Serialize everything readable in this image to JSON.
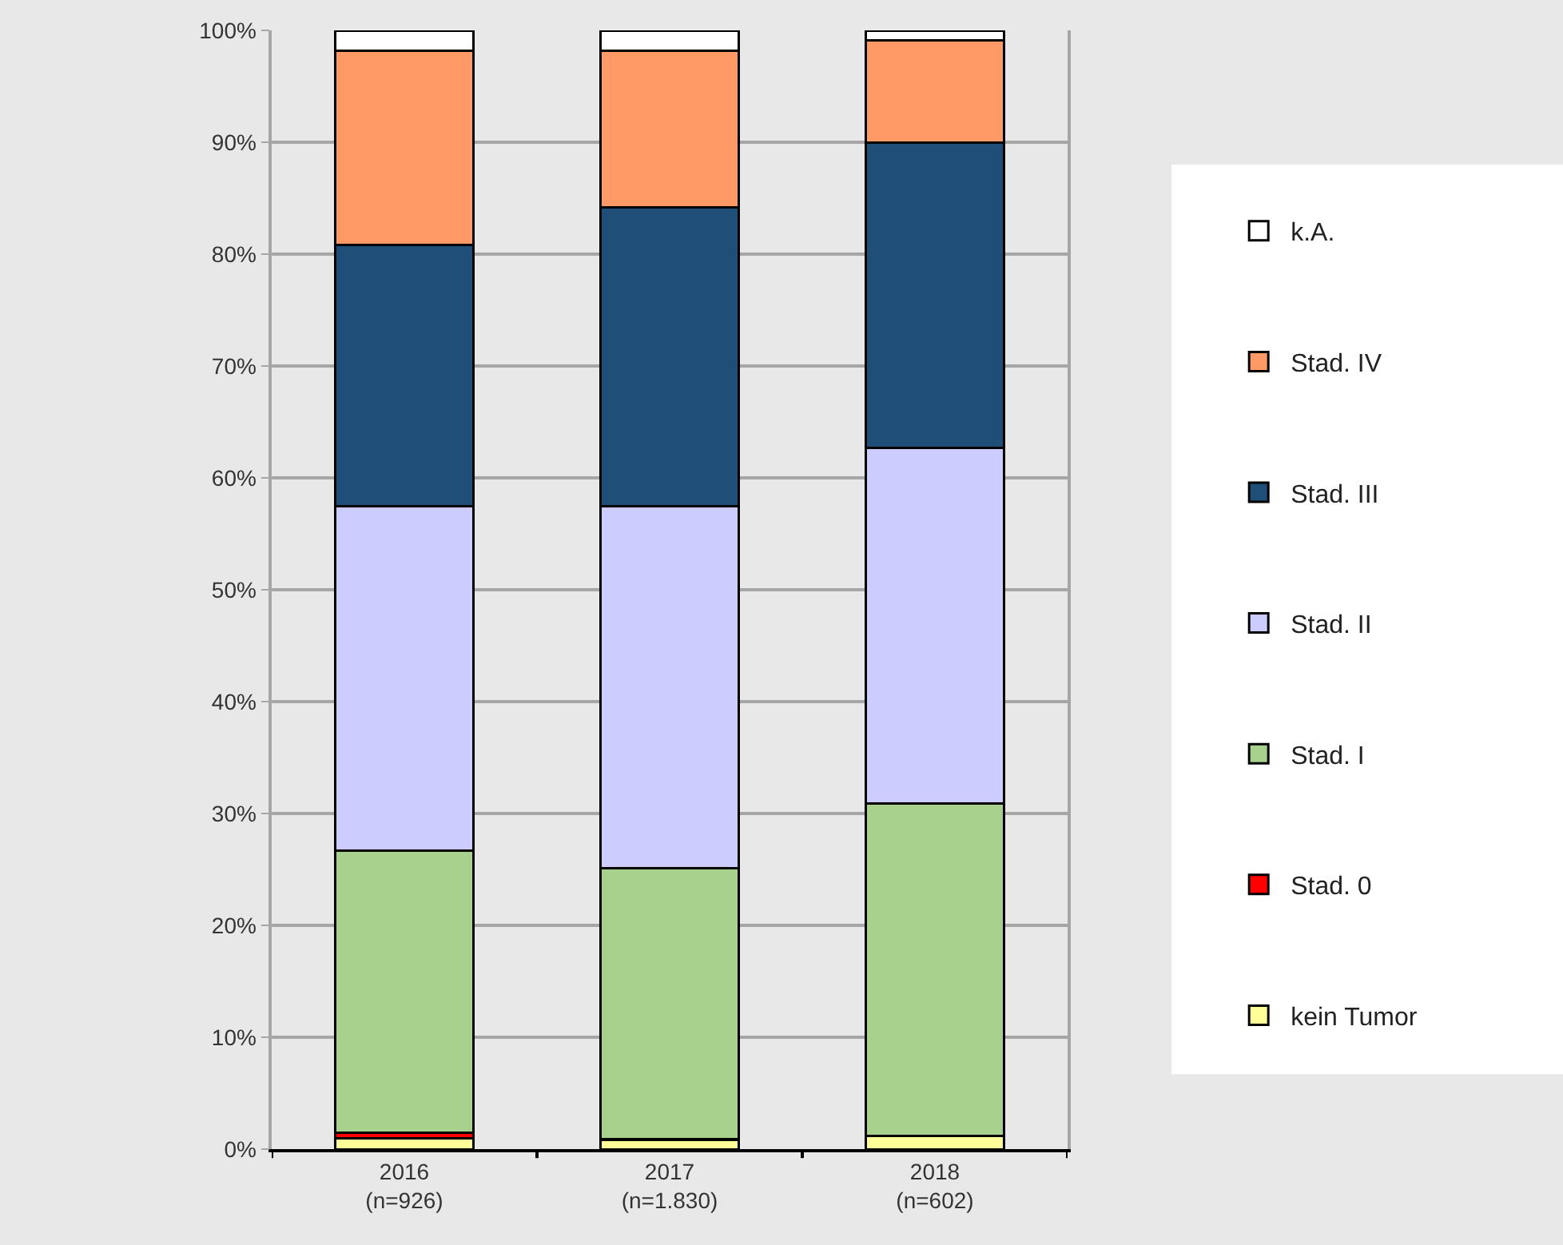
{
  "chart_data": {
    "type": "bar",
    "stacked": true,
    "categories": [
      "2016\n(n=926)",
      "2017\n(n=1.830)",
      "2018\n(n=602)"
    ],
    "series": [
      {
        "name": "kein Tumor",
        "color": "#ffff99",
        "values": [
          1.0,
          0.8,
          1.2
        ]
      },
      {
        "name": "Stad. 0",
        "color": "#ff0000",
        "values": [
          0.5,
          0.1,
          0
        ]
      },
      {
        "name": "Stad. I",
        "color": "#a9d18e",
        "values": [
          25.2,
          24.2,
          29.7
        ]
      },
      {
        "name": "Stad. II",
        "color": "#ccccff",
        "values": [
          30.8,
          32.4,
          31.8
        ]
      },
      {
        "name": "Stad. III",
        "color": "#1f4e79",
        "values": [
          23.3,
          26.7,
          27.3
        ]
      },
      {
        "name": "Stad. IV",
        "color": "#ff9966",
        "values": [
          17.4,
          14.0,
          9.1
        ]
      },
      {
        "name": "k.A.",
        "color": "#ffffff",
        "values": [
          1.8,
          1.8,
          0.9
        ]
      }
    ],
    "ylim": [
      0,
      100
    ],
    "yticks": [
      {
        "value": 0,
        "label": "0%"
      },
      {
        "value": 10,
        "label": "10%"
      },
      {
        "value": 20,
        "label": "20%"
      },
      {
        "value": 30,
        "label": "30%"
      },
      {
        "value": 40,
        "label": "40%"
      },
      {
        "value": 50,
        "label": "50%"
      },
      {
        "value": 60,
        "label": "60%"
      },
      {
        "value": 70,
        "label": "70%"
      },
      {
        "value": 80,
        "label": "80%"
      },
      {
        "value": 90,
        "label": "90%"
      },
      {
        "value": 100,
        "label": "100%"
      }
    ],
    "grid": "y",
    "legend": "right"
  }
}
